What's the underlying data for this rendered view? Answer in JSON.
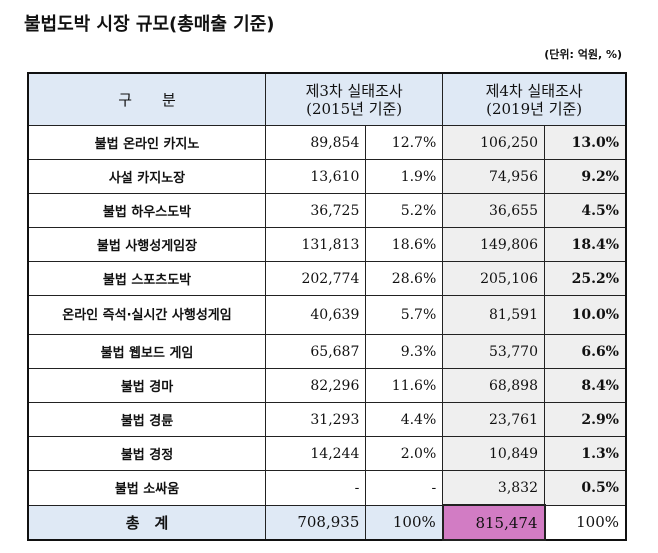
{
  "title": "불법도박 시장 규모(총매출 기준)",
  "unit": "(단위: 억원, %)",
  "headers": {
    "category": "구　　분",
    "survey3": "제3차 실태조사",
    "survey3_sub": "(2015년 기준)",
    "survey4": "제4차 실태조사",
    "survey4_sub": "(2019년 기준)"
  },
  "rows": [
    {
      "label": "불법 온라인 카지노",
      "v2015": "89,854",
      "p2015": "12.7%",
      "v2019": "106,250",
      "p2019": "13.0%"
    },
    {
      "label": "사설 카지노장",
      "v2015": "13,610",
      "p2015": "1.9%",
      "v2019": "74,956",
      "p2019": "9.2%"
    },
    {
      "label": "불법 하우스도박",
      "v2015": "36,725",
      "p2015": "5.2%",
      "v2019": "36,655",
      "p2019": "4.5%"
    },
    {
      "label": "불법 사행성게임장",
      "v2015": "131,813",
      "p2015": "18.6%",
      "v2019": "149,806",
      "p2019": "18.4%"
    },
    {
      "label": "불법 스포츠도박",
      "v2015": "202,774",
      "p2015": "28.6%",
      "v2019": "205,106",
      "p2019": "25.2%"
    },
    {
      "label": "온라인 즉석·실시간 사행성게임",
      "v2015": "40,639",
      "p2015": "5.7%",
      "v2019": "81,591",
      "p2019": "10.0%"
    },
    {
      "label": "불법 웹보드 게임",
      "v2015": "65,687",
      "p2015": "9.3%",
      "v2019": "53,770",
      "p2019": "6.6%"
    },
    {
      "label": "불법 경마",
      "v2015": "82,296",
      "p2015": "11.6%",
      "v2019": "68,898",
      "p2019": "8.4%"
    },
    {
      "label": "불법 경륜",
      "v2015": "31,293",
      "p2015": "4.4%",
      "v2019": "23,761",
      "p2019": "2.9%"
    },
    {
      "label": "불법 경정",
      "v2015": "14,244",
      "p2015": "2.0%",
      "v2019": "10,849",
      "p2019": "1.3%"
    },
    {
      "label": "불법 소싸움",
      "v2015": "-",
      "p2015": "-",
      "v2019": "3,832",
      "p2019": "0.5%"
    }
  ],
  "total": {
    "label": "총　계",
    "v2015": "708,935",
    "p2015": "100%",
    "v2019": "815,474",
    "p2019": "100%"
  },
  "colors": {
    "header_bg": "#dfe9f5",
    "survey4_bg": "#efefef",
    "highlight": "#d27cc4"
  }
}
